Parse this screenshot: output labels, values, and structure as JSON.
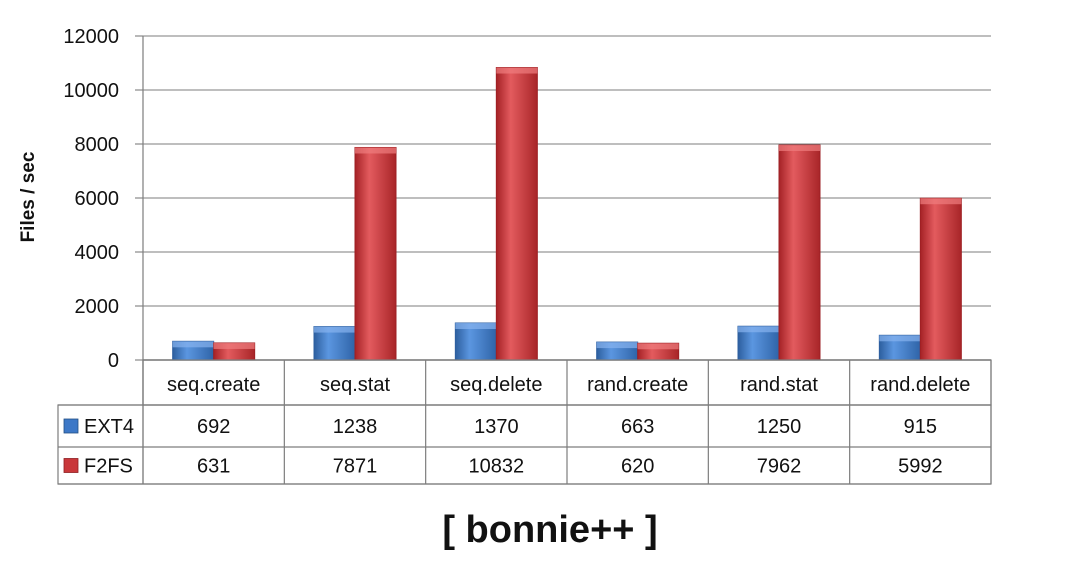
{
  "chart_data": {
    "type": "bar",
    "title": "",
    "footer_title": "[ bonnie++ ]",
    "xlabel": "",
    "ylabel": "Files / sec",
    "ylim": [
      0,
      12000
    ],
    "y_ticks": [
      0,
      2000,
      4000,
      6000,
      8000,
      10000,
      12000
    ],
    "grid": true,
    "legend": "left, in data table",
    "categories": [
      "seq.create",
      "seq.stat",
      "seq.delete",
      "rand.create",
      "rand.stat",
      "rand.delete"
    ],
    "series": [
      {
        "name": "EXT4",
        "color": "#3d78c7",
        "values": [
          692,
          1238,
          1370,
          663,
          1250,
          915
        ]
      },
      {
        "name": "F2FS",
        "color": "#c9373a",
        "values": [
          631,
          7871,
          10832,
          620,
          7962,
          5992
        ]
      }
    ]
  }
}
